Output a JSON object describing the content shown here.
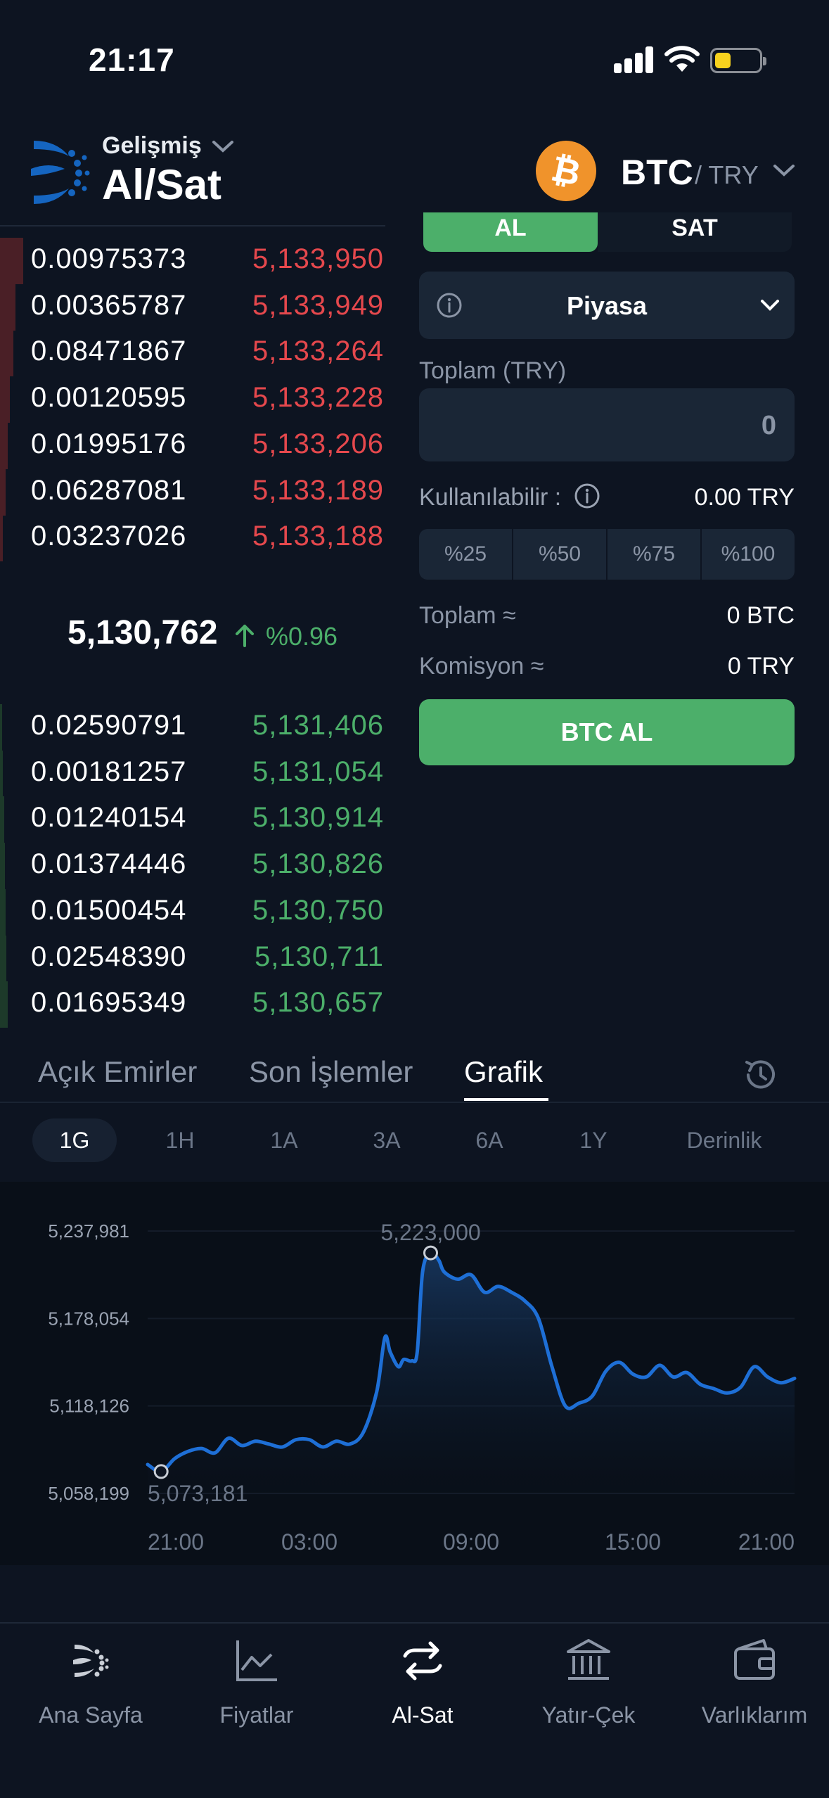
{
  "status_bar": {
    "time": "21:17"
  },
  "header": {
    "subtitle": "Gelişmiş",
    "title": "Al/Sat",
    "pair_base": "BTC",
    "pair_quote": "/ TRY"
  },
  "order_book": {
    "asks": [
      {
        "amount": "0.00975373",
        "price": "5,133,950",
        "depth": 0.06
      },
      {
        "amount": "0.00365787",
        "price": "5,133,949",
        "depth": 0.04
      },
      {
        "amount": "0.08471867",
        "price": "5,133,264",
        "depth": 0.035
      },
      {
        "amount": "0.00120595",
        "price": "5,133,228",
        "depth": 0.025
      },
      {
        "amount": "0.01995176",
        "price": "5,133,206",
        "depth": 0.02
      },
      {
        "amount": "0.06287081",
        "price": "5,133,189",
        "depth": 0.015
      },
      {
        "amount": "0.03237026",
        "price": "5,133,188",
        "depth": 0.008
      }
    ],
    "last_price": "5,130,762",
    "change": "%0.96",
    "bids": [
      {
        "amount": "0.02590791",
        "price": "5,131,406",
        "depth": 0.006
      },
      {
        "amount": "0.00181257",
        "price": "5,131,054",
        "depth": 0.008
      },
      {
        "amount": "0.01240154",
        "price": "5,130,914",
        "depth": 0.01
      },
      {
        "amount": "0.01374446",
        "price": "5,130,826",
        "depth": 0.012
      },
      {
        "amount": "0.01500454",
        "price": "5,130,750",
        "depth": 0.014
      },
      {
        "amount": "0.02548390",
        "price": "5,130,711",
        "depth": 0.017
      },
      {
        "amount": "0.01695349",
        "price": "5,130,657",
        "depth": 0.02
      }
    ]
  },
  "trade_panel": {
    "buy_tab": "AL",
    "sell_tab": "SAT",
    "order_type": "Piyasa",
    "total_label": "Toplam (TRY)",
    "total_value": "0",
    "available_label": "Kullanılabilir :",
    "available_value": "0.00 TRY",
    "percent_buttons": [
      "%25",
      "%50",
      "%75",
      "%100"
    ],
    "total_approx_label": "Toplam ≈",
    "total_approx_value": "0 BTC",
    "commission_label": "Komisyon ≈",
    "commission_value": "0 TRY",
    "submit_label": "BTC AL"
  },
  "tabs": [
    "Açık Emirler",
    "Son İşlemler",
    "Grafik"
  ],
  "active_tab": "Grafik",
  "periods": [
    "1G",
    "1H",
    "1A",
    "3A",
    "6A",
    "1Y",
    "Derinlik"
  ],
  "active_period": "1G",
  "chart_data": {
    "type": "area",
    "y_ticks": [
      "5,237,981",
      "5,178,054",
      "5,118,126",
      "5,058,199"
    ],
    "y_tick_values": [
      5237981,
      5178054,
      5118126,
      5058199
    ],
    "x_ticks": [
      "21:00",
      "03:00",
      "09:00",
      "15:00",
      "21:00"
    ],
    "x_tick_hours": [
      0,
      6,
      12,
      18,
      24
    ],
    "ylim": [
      5058199,
      5237981
    ],
    "high_label": "5,223,000",
    "high_value": 5223000,
    "low_label": "5,073,181",
    "low_value": 5073181,
    "color": "#1e6fd6",
    "series": [
      {
        "x": [
          0,
          0.5,
          1,
          1.5,
          2,
          2.5,
          3,
          3.5,
          4,
          4.5,
          5,
          5.5,
          6,
          6.5,
          7,
          7.5,
          8,
          8.5,
          8.8,
          9,
          9.3,
          9.5,
          9.8,
          10,
          10.2,
          10.5,
          10.8,
          11,
          11.5,
          12,
          12.5,
          13,
          13.5,
          14,
          14.5,
          15,
          15.5,
          16,
          16.5,
          17,
          17.5,
          18,
          18.5,
          19,
          19.5,
          20,
          20.5,
          21,
          21.5,
          22,
          22.5,
          23,
          23.5,
          24
        ],
        "y": [
          5078000,
          5073181,
          5082000,
          5087000,
          5089000,
          5086000,
          5096000,
          5091000,
          5094000,
          5092000,
          5090000,
          5095000,
          5095000,
          5090000,
          5094000,
          5092000,
          5100000,
          5128000,
          5165000,
          5155000,
          5145000,
          5150000,
          5149000,
          5155000,
          5210000,
          5223000,
          5218000,
          5210000,
          5205000,
          5208000,
          5196000,
          5200000,
          5196000,
          5190000,
          5178000,
          5145000,
          5118000,
          5120000,
          5125000,
          5142000,
          5148000,
          5140000,
          5138000,
          5146000,
          5138000,
          5141000,
          5133000,
          5130000,
          5127000,
          5131000,
          5145000,
          5138000,
          5134000,
          5137000
        ]
      }
    ]
  },
  "nav": [
    {
      "label": "Ana Sayfa",
      "icon": "home-logo-icon"
    },
    {
      "label": "Fiyatlar",
      "icon": "chart-icon"
    },
    {
      "label": "Al-Sat",
      "icon": "swap-icon"
    },
    {
      "label": "Yatır-Çek",
      "icon": "bank-icon"
    },
    {
      "label": "Varlıklarım",
      "icon": "wallet-icon"
    }
  ],
  "active_nav": "Al-Sat",
  "colors": {
    "background": "#0d1421",
    "buy_green": "#4caf6a",
    "sell_red": "#e5484d",
    "btc_orange": "#f0932b",
    "brand_blue": "#1565c0"
  }
}
